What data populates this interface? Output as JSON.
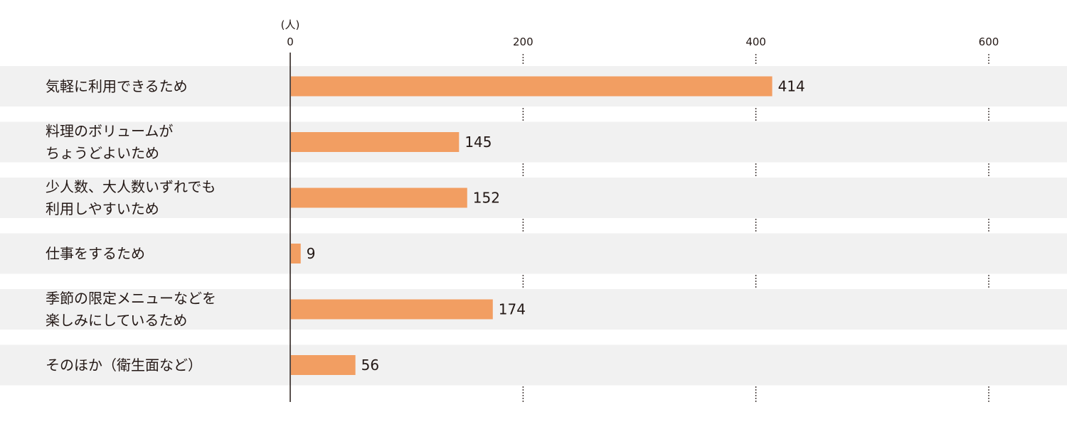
{
  "chart_data": {
    "type": "bar",
    "orientation": "horizontal",
    "unit": "(人)",
    "categories": [
      [
        "気軽に利用できるため"
      ],
      [
        "料理のボリュームが",
        "ちょうどよいため"
      ],
      [
        "少人数、大人数いずれでも",
        "利用しやすいため"
      ],
      [
        "仕事をするため"
      ],
      [
        "季節の限定メニューなどを",
        "楽しみにしているため"
      ],
      [
        "そのほか（衛生面など）"
      ]
    ],
    "values": [
      414,
      145,
      152,
      9,
      174,
      56
    ],
    "value_labels": [
      "414",
      "145",
      "152",
      "9",
      "174",
      "56"
    ],
    "xlim": [
      0,
      600
    ],
    "ticks": [
      0,
      200,
      400,
      600
    ],
    "tick_labels": [
      "0",
      "200",
      "400",
      "600"
    ],
    "gridlines": "dotted"
  },
  "colors": {
    "bar": "#F29E62",
    "band": "#F1F1F1",
    "axis": "#231815",
    "grid": "#231815",
    "text": "#231815"
  }
}
